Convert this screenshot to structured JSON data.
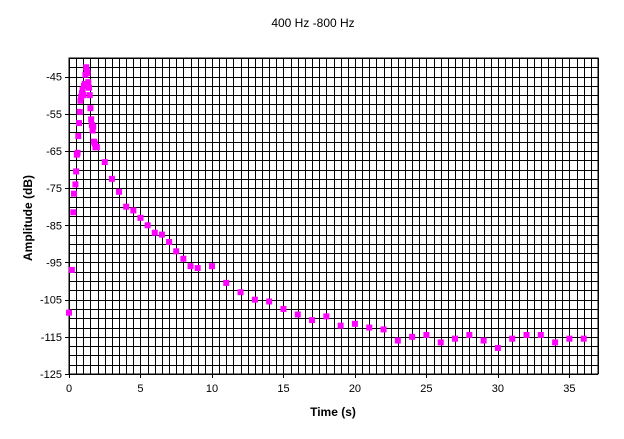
{
  "chart_data": {
    "type": "scatter",
    "title": "400 Hz -800 Hz",
    "xlabel": "Time (s)",
    "ylabel": "Amplitude (dB)",
    "xlim": [
      0,
      37
    ],
    "ylim": [
      -125,
      -40
    ],
    "x_ticks": [
      0,
      5,
      10,
      15,
      20,
      25,
      30,
      35
    ],
    "y_ticks": [
      -45,
      -55,
      -65,
      -75,
      -85,
      -95,
      -105,
      -115,
      -125
    ],
    "grid": true,
    "grid_x_step": 0.5,
    "grid_y_step": 2.5,
    "marker_color": "#ff00ff",
    "series": [
      {
        "x": [
          0,
          0.2,
          0.3,
          0.35,
          0.45,
          0.5,
          0.55,
          0.6,
          0.65,
          0.7,
          0.75,
          0.8,
          0.85,
          0.9,
          0.95,
          1.0,
          1.05,
          1.1,
          1.15,
          1.2,
          1.25,
          1.3,
          1.35,
          1.4,
          1.45,
          1.5,
          1.55,
          1.6,
          1.65,
          1.7,
          1.75,
          1.8,
          1.85,
          1.9,
          1.95,
          2.5,
          3.0,
          3.5,
          4.0,
          4.5,
          5.0,
          5.5,
          6.0,
          6.5,
          7.0,
          7.5,
          8.0,
          8.5,
          9.0,
          10.0,
          11.0,
          12.0,
          13.0,
          14.0,
          15.0,
          16.0,
          17.0,
          18.0,
          19.0,
          20.0,
          21.0,
          22.0,
          23.0,
          24.0,
          25.0,
          26.0,
          27.0,
          28.0,
          29.0,
          30.0,
          31.0,
          32.0,
          33.0,
          34.0,
          35.0,
          36.0
        ],
        "y": [
          -108.5,
          -97,
          -81.5,
          -76.5,
          -74,
          -70.5,
          -66,
          -65.5,
          -61,
          -57.5,
          -54.5,
          -51.5,
          -50.5,
          -49.5,
          -48.5,
          -50,
          -47.5,
          -47,
          -44.5,
          -42.5,
          -43.5,
          -44,
          -46.5,
          -48,
          -50,
          -53.5,
          -56.5,
          -58,
          -59.5,
          -58.5,
          -62.5,
          -63,
          -64,
          -64,
          -64,
          -68,
          -72.5,
          -76,
          -80,
          -81,
          -83,
          -85,
          -87,
          -87.5,
          -89.5,
          -92,
          -94,
          -96,
          -96.5,
          -96,
          -100.5,
          -103,
          -105,
          -105.5,
          -107.5,
          -109,
          -110.5,
          -109.5,
          -112,
          -111.5,
          -112.5,
          -113,
          -116,
          -115,
          -114.5,
          -116.5,
          -115.5,
          -114.5,
          -116,
          -118,
          -115.5,
          -114.5,
          -114.5,
          -116.5,
          -115.5,
          -115.5
        ]
      }
    ]
  }
}
